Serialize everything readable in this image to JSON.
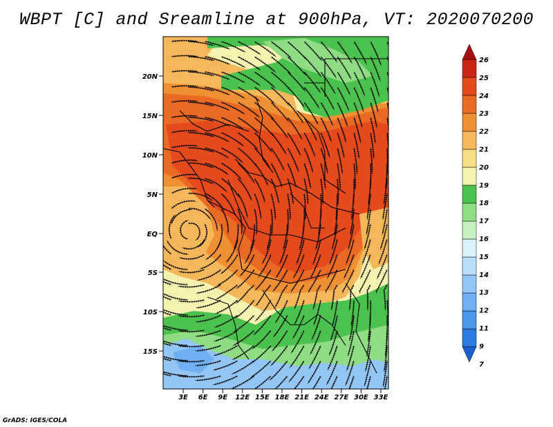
{
  "title": "WBPT [C] and Sreamline at 900hPa, VT: 2020070200",
  "footer": "GrADS: IGES/COLA",
  "lat_ticks": [
    "20N",
    "15N",
    "10N",
    "5N",
    "EQ",
    "5S",
    "10S",
    "15S"
  ],
  "lon_ticks": [
    "3E",
    "6E",
    "9E",
    "12E",
    "15E",
    "18E",
    "21E",
    "24E",
    "27E",
    "30E",
    "33E"
  ],
  "colorbar": {
    "labels": [
      "7",
      "9",
      "11",
      "12",
      "13",
      "14",
      "15",
      "16",
      "17",
      "18",
      "19",
      "20",
      "21",
      "22",
      "23",
      "24",
      "25",
      "26"
    ],
    "colors": [
      "#1d5fd1",
      "#2c7be0",
      "#4a97ec",
      "#6fb0f2",
      "#93c6f5",
      "#b9dcf8",
      "#dcf2fb",
      "#c8efc0",
      "#8fdc84",
      "#4cc24e",
      "#f5f2b0",
      "#f7dd84",
      "#f4b85a",
      "#f08f33",
      "#ea6a24",
      "#e44a1c",
      "#cc2414",
      "#a81010"
    ]
  },
  "map_colors": {
    "green": "#4cc24e",
    "light_green": "#8fdc84",
    "pale_green": "#c8efc0",
    "blue": "#6fb0f2",
    "light_blue": "#93c6f5",
    "yellow": "#f5f2b0",
    "tan": "#f7dd84",
    "orange": "#f4b85a",
    "deep_orange": "#f08f33",
    "red_orange": "#ea6a24",
    "red": "#e44a1c"
  }
}
